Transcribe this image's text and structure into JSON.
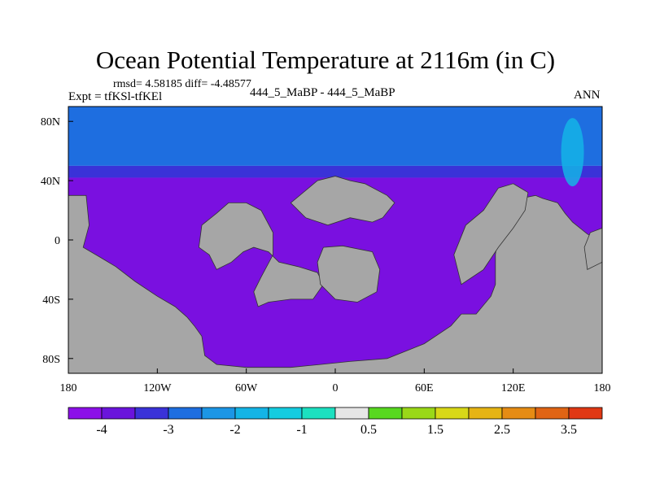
{
  "title": "Ocean Potential Temperature at 2116m (in C)",
  "stats_text": "rmsd= 4.58185 diff= -4.48577",
  "left_label": "Expt = tfKSl-tfKEl",
  "center_label": "444_5_MaBP - 444_5_MaBP",
  "right_label": "ANN",
  "colors": {
    "land": "#a6a6a6",
    "dominant_fill": "#7a10e0",
    "frame": "#000000"
  },
  "chart_data": {
    "type": "heatmap",
    "projection": "cylindrical-equidistant",
    "xlim": [
      -180,
      180
    ],
    "ylim": [
      -90,
      90
    ],
    "x_ticks": [
      {
        "value": -180,
        "label": "180"
      },
      {
        "value": -120,
        "label": "120W"
      },
      {
        "value": -60,
        "label": "60W"
      },
      {
        "value": 0,
        "label": "0"
      },
      {
        "value": 60,
        "label": "60E"
      },
      {
        "value": 120,
        "label": "120E"
      },
      {
        "value": 180,
        "label": "180"
      }
    ],
    "y_ticks": [
      {
        "value": 80,
        "label": "80N"
      },
      {
        "value": 40,
        "label": "40N"
      },
      {
        "value": 0,
        "label": "0"
      },
      {
        "value": -40,
        "label": "40S"
      },
      {
        "value": -80,
        "label": "80S"
      }
    ],
    "colorbar": {
      "colors": [
        "#8c10e8",
        "#6a14dc",
        "#3a32d8",
        "#1e6ee0",
        "#1c96e6",
        "#14b4e6",
        "#14cce0",
        "#1ce0c0",
        "#e6e6e6",
        "#58d820",
        "#9ad818",
        "#d8d818",
        "#e6b414",
        "#e68c14",
        "#e06414",
        "#e03814"
      ],
      "labels": [
        {
          "after_box": 1,
          "text": "-4"
        },
        {
          "after_box": 3,
          "text": "-3"
        },
        {
          "after_box": 5,
          "text": "-2"
        },
        {
          "after_box": 7,
          "text": "-1"
        },
        {
          "after_box": 9,
          "text": "0.5"
        },
        {
          "after_box": 11,
          "text": "1.5"
        },
        {
          "after_box": 13,
          "text": "2.5"
        },
        {
          "after_box": 15,
          "text": "3.5"
        }
      ]
    },
    "bands": [
      {
        "lat_from": 90,
        "lat_to": 50,
        "color": "#1e6ee0"
      },
      {
        "lat_from": 50,
        "lat_to": 42,
        "color": "#3a32d8"
      },
      {
        "lat_from": 42,
        "lat_to": -90,
        "color": "#7a10e0"
      }
    ],
    "highlight": {
      "lon": 160,
      "lat": 40,
      "color": "#14b4e6"
    },
    "land": [
      [
        [
          -180,
          30
        ],
        [
          -168,
          30
        ],
        [
          -166,
          10
        ],
        [
          -170,
          -5
        ],
        [
          -158,
          -12
        ],
        [
          -148,
          -18
        ],
        [
          -135,
          -28
        ],
        [
          -120,
          -38
        ],
        [
          -108,
          -45
        ],
        [
          -100,
          -52
        ],
        [
          -95,
          -58
        ],
        [
          -90,
          -65
        ],
        [
          -88,
          -78
        ],
        [
          -80,
          -84
        ],
        [
          -60,
          -86
        ],
        [
          -30,
          -86
        ],
        [
          -10,
          -84
        ],
        [
          10,
          -82
        ],
        [
          35,
          -80
        ],
        [
          60,
          -70
        ],
        [
          78,
          -58
        ],
        [
          85,
          -50
        ],
        [
          95,
          -50
        ],
        [
          105,
          -38
        ],
        [
          108,
          -30
        ],
        [
          108,
          -10
        ],
        [
          110,
          5
        ],
        [
          115,
          15
        ],
        [
          118,
          25
        ],
        [
          125,
          28
        ],
        [
          135,
          30
        ],
        [
          140,
          28
        ],
        [
          150,
          25
        ],
        [
          155,
          18
        ],
        [
          160,
          12
        ],
        [
          170,
          4
        ],
        [
          180,
          -2
        ],
        [
          180,
          -90
        ],
        [
          -180,
          -90
        ]
      ],
      [
        [
          -85,
          -10
        ],
        [
          -92,
          -5
        ],
        [
          -90,
          10
        ],
        [
          -80,
          18
        ],
        [
          -72,
          25
        ],
        [
          -60,
          25
        ],
        [
          -50,
          20
        ],
        [
          -42,
          5
        ],
        [
          -42,
          -10
        ],
        [
          -50,
          -25
        ],
        [
          -55,
          -35
        ],
        [
          -52,
          -45
        ],
        [
          -45,
          -42
        ],
        [
          -30,
          -40
        ],
        [
          -15,
          -40
        ],
        [
          -8,
          -30
        ],
        [
          -12,
          -22
        ],
        [
          -25,
          -18
        ],
        [
          -38,
          -15
        ],
        [
          -45,
          -8
        ],
        [
          -55,
          -5
        ],
        [
          -62,
          -8
        ],
        [
          -70,
          -15
        ],
        [
          -80,
          -20
        ]
      ],
      [
        [
          -30,
          25
        ],
        [
          -12,
          40
        ],
        [
          0,
          43
        ],
        [
          10,
          40
        ],
        [
          20,
          38
        ],
        [
          35,
          30
        ],
        [
          40,
          25
        ],
        [
          32,
          15
        ],
        [
          25,
          12
        ],
        [
          10,
          15
        ],
        [
          -5,
          10
        ],
        [
          -20,
          15
        ]
      ],
      [
        [
          -8,
          -5
        ],
        [
          5,
          -4
        ],
        [
          25,
          -8
        ],
        [
          30,
          -20
        ],
        [
          28,
          -35
        ],
        [
          15,
          -42
        ],
        [
          0,
          -40
        ],
        [
          -10,
          -30
        ],
        [
          -12,
          -15
        ]
      ],
      [
        [
          85,
          -30
        ],
        [
          80,
          -10
        ],
        [
          88,
          10
        ],
        [
          100,
          20
        ],
        [
          110,
          35
        ],
        [
          120,
          38
        ],
        [
          130,
          32
        ],
        [
          128,
          20
        ],
        [
          120,
          8
        ],
        [
          110,
          -5
        ],
        [
          100,
          -20
        ]
      ],
      [
        [
          170,
          -20
        ],
        [
          180,
          -15
        ],
        [
          180,
          8
        ],
        [
          172,
          5
        ],
        [
          168,
          -5
        ]
      ]
    ]
  }
}
